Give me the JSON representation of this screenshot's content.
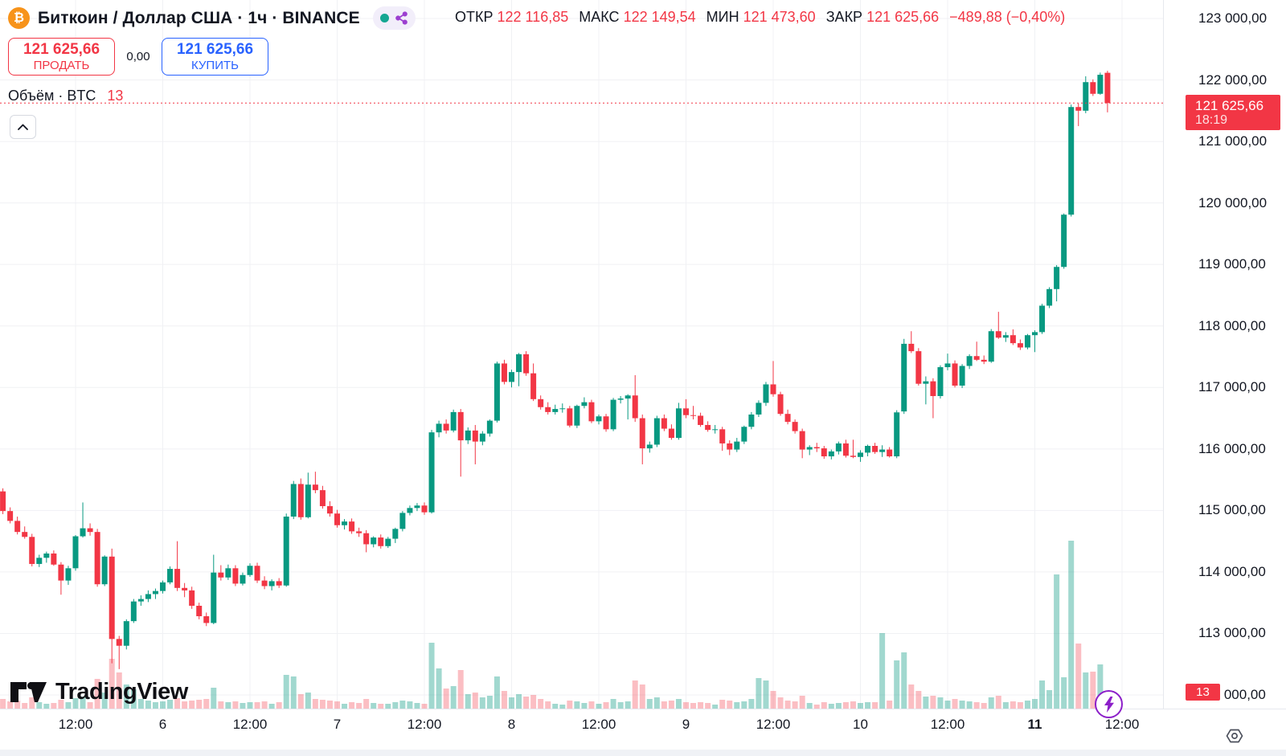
{
  "header": {
    "symbol_title": "Биткоин / Доллар США · 1ч · BINANCE",
    "ohlc": {
      "open_label": "ОТКР",
      "open": "122 116,85",
      "high_label": "МАКС",
      "high": "122 149,54",
      "low_label": "МИН",
      "low": "121 473,60",
      "close_label": "ЗАКР",
      "close": "121 625,66",
      "change": "−489,88 (−0,40%)"
    }
  },
  "trade_buttons": {
    "sell_price": "121 625,66",
    "sell_label": "ПРОДАТЬ",
    "spread": "0,00",
    "buy_price": "121 625,66",
    "buy_label": "КУПИТЬ"
  },
  "indicator": {
    "label": "Объём · BTC",
    "value": "13"
  },
  "price_scale": {
    "labels": [
      "123 000,00",
      "122 000,00",
      "121 000,00",
      "120 000,00",
      "119 000,00",
      "118 000,00",
      "117 000,00",
      "116 000,00",
      "115 000,00",
      "114 000,00",
      "113 000,00",
      "112 000,00"
    ],
    "last_price_badge": {
      "price": "121 625,66",
      "countdown": "18:19"
    },
    "volume_badge": "13"
  },
  "time_scale": {
    "labels": [
      {
        "text": "12:00",
        "bold": false
      },
      {
        "text": "6",
        "bold": false
      },
      {
        "text": "12:00",
        "bold": false
      },
      {
        "text": "7",
        "bold": false
      },
      {
        "text": "12:00",
        "bold": false
      },
      {
        "text": "8",
        "bold": false
      },
      {
        "text": "12:00",
        "bold": false
      },
      {
        "text": "9",
        "bold": false
      },
      {
        "text": "12:00",
        "bold": false
      },
      {
        "text": "10",
        "bold": false
      },
      {
        "text": "12:00",
        "bold": false
      },
      {
        "text": "11",
        "bold": true
      },
      {
        "text": "12:00",
        "bold": false
      }
    ]
  },
  "watermark": "TradingView",
  "colors": {
    "up": "#089981",
    "down": "#f23645",
    "vol_up": "rgba(8,153,129,0.38)",
    "vol_down": "rgba(242,54,69,0.32)",
    "accent_buy": "#2962ff",
    "accent_sell": "#f23645",
    "grid": "#f0f1f4",
    "badge": "#f23645",
    "share_purple": "#9c3fd0",
    "btc_orange": "#f7931a"
  },
  "chart_data": {
    "type": "candlestick+volume",
    "symbol": "Биткоин / Доллар США (BTC/USD)",
    "interval": "1ч",
    "exchange": "BINANCE",
    "last_price": 121625.66,
    "last_bar": {
      "open": 122116.85,
      "high": 122149.54,
      "low": 121473.6,
      "close": 121625.66,
      "change": -489.88,
      "change_pct": -0.4
    },
    "current_bar_volume_btc": 13,
    "y_axis": {
      "min": 112000,
      "max": 123000,
      "step": 1000
    },
    "x_tick_labels": [
      "12:00",
      "6",
      "12:00",
      "7",
      "12:00",
      "8",
      "12:00",
      "9",
      "12:00",
      "10",
      "12:00",
      "11",
      "12:00"
    ],
    "legend": "Объём · BTC",
    "volume_unit": "relative-height-px",
    "ohlcv": [
      [
        115310,
        115360,
        114940,
        114990,
        12
      ],
      [
        114990,
        115050,
        114790,
        114830,
        9
      ],
      [
        114830,
        114900,
        114610,
        114650,
        10
      ],
      [
        114650,
        114740,
        114540,
        114570,
        7
      ],
      [
        114570,
        114620,
        114090,
        114130,
        14
      ],
      [
        114130,
        114280,
        114080,
        114230,
        8
      ],
      [
        114230,
        114330,
        114150,
        114300,
        6
      ],
      [
        114300,
        114350,
        114100,
        114120,
        7
      ],
      [
        114120,
        114160,
        113630,
        113860,
        11
      ],
      [
        113860,
        114100,
        113790,
        114060,
        8
      ],
      [
        114060,
        114600,
        114020,
        114580,
        13
      ],
      [
        114580,
        115130,
        114560,
        114710,
        15
      ],
      [
        114710,
        114790,
        114590,
        114650,
        8
      ],
      [
        114650,
        114700,
        113760,
        113800,
        37
      ],
      [
        113800,
        114270,
        113770,
        114250,
        20
      ],
      [
        114250,
        114380,
        112515,
        112910,
        62
      ],
      [
        112910,
        112960,
        112420,
        112800,
        45
      ],
      [
        112800,
        113230,
        112740,
        113200,
        30
      ],
      [
        113200,
        113560,
        113170,
        113520,
        24
      ],
      [
        113520,
        113620,
        113450,
        113560,
        12
      ],
      [
        113560,
        113700,
        113510,
        113640,
        10
      ],
      [
        113640,
        113730,
        113560,
        113690,
        8
      ],
      [
        113690,
        113860,
        113650,
        113830,
        9
      ],
      [
        113830,
        114090,
        113800,
        114050,
        11
      ],
      [
        114050,
        114500,
        113690,
        113740,
        13
      ],
      [
        113740,
        113820,
        113590,
        113700,
        9
      ],
      [
        113700,
        113760,
        113400,
        113450,
        10
      ],
      [
        113450,
        113500,
        113230,
        113280,
        11
      ],
      [
        113280,
        113340,
        113120,
        113170,
        12
      ],
      [
        113170,
        114280,
        113150,
        113990,
        26
      ],
      [
        113990,
        114110,
        113860,
        113910,
        9
      ],
      [
        113910,
        114120,
        113870,
        114060,
        8
      ],
      [
        114060,
        114110,
        113770,
        113810,
        9
      ],
      [
        113810,
        113990,
        113780,
        113950,
        7
      ],
      [
        113950,
        114140,
        113920,
        114100,
        8
      ],
      [
        114100,
        114150,
        113820,
        113860,
        8
      ],
      [
        113860,
        113930,
        113720,
        113770,
        9
      ],
      [
        113770,
        113880,
        113700,
        113850,
        6
      ],
      [
        113850,
        113900,
        113740,
        113780,
        8
      ],
      [
        113780,
        114950,
        113760,
        114900,
        42
      ],
      [
        114900,
        115480,
        114860,
        115430,
        40
      ],
      [
        115430,
        115520,
        114850,
        114890,
        18
      ],
      [
        114890,
        115615,
        114870,
        115420,
        20
      ],
      [
        115420,
        115630,
        115280,
        115330,
        12
      ],
      [
        115330,
        115400,
        115030,
        115070,
        11
      ],
      [
        115070,
        115150,
        114900,
        114950,
        10
      ],
      [
        114950,
        115010,
        114720,
        114760,
        9
      ],
      [
        114760,
        114860,
        114690,
        114820,
        6
      ],
      [
        114820,
        114870,
        114620,
        114660,
        8
      ],
      [
        114660,
        114720,
        114570,
        114630,
        7
      ],
      [
        114630,
        114680,
        114320,
        114450,
        12
      ],
      [
        114450,
        114580,
        114400,
        114560,
        7
      ],
      [
        114560,
        114610,
        114380,
        114420,
        6
      ],
      [
        114420,
        114570,
        114390,
        114540,
        6
      ],
      [
        114540,
        114720,
        114470,
        114700,
        8
      ],
      [
        114700,
        114990,
        114660,
        114960,
        10
      ],
      [
        114960,
        115080,
        114920,
        115040,
        9
      ],
      [
        115040,
        115120,
        114990,
        115080,
        7
      ],
      [
        115080,
        115130,
        114930,
        114970,
        6
      ],
      [
        114970,
        116310,
        114950,
        116270,
        82
      ],
      [
        116270,
        116460,
        116190,
        116410,
        50
      ],
      [
        116410,
        116480,
        116250,
        116300,
        25
      ],
      [
        116300,
        116640,
        116270,
        116600,
        28
      ],
      [
        116600,
        116650,
        115550,
        116140,
        48
      ],
      [
        116140,
        116350,
        116080,
        116300,
        18
      ],
      [
        116300,
        116390,
        115750,
        116120,
        20
      ],
      [
        116120,
        116290,
        116060,
        116250,
        14
      ],
      [
        116250,
        116480,
        116200,
        116460,
        16
      ],
      [
        116460,
        117420,
        116430,
        117390,
        40
      ],
      [
        117390,
        117450,
        117050,
        117090,
        22
      ],
      [
        117090,
        117290,
        117000,
        117250,
        14
      ],
      [
        117250,
        117560,
        117020,
        117540,
        18
      ],
      [
        117540,
        117590,
        117190,
        117230,
        15
      ],
      [
        117230,
        117390,
        116780,
        116810,
        17
      ],
      [
        116810,
        116870,
        116640,
        116680,
        12
      ],
      [
        116680,
        116760,
        116560,
        116600,
        9
      ],
      [
        116600,
        116720,
        116560,
        116650,
        6
      ],
      [
        116650,
        116740,
        116590,
        116660,
        5
      ],
      [
        116660,
        116700,
        116350,
        116380,
        10
      ],
      [
        116380,
        116720,
        116340,
        116700,
        9
      ],
      [
        116700,
        116840,
        116660,
        116760,
        7
      ],
      [
        116760,
        116800,
        116420,
        116450,
        9
      ],
      [
        116450,
        116560,
        116400,
        116530,
        6
      ],
      [
        116530,
        116570,
        116280,
        116320,
        8
      ],
      [
        116320,
        116830,
        116290,
        116800,
        12
      ],
      [
        116800,
        116860,
        116740,
        116820,
        8
      ],
      [
        116820,
        116890,
        116480,
        116870,
        9
      ],
      [
        116870,
        117200,
        116440,
        116500,
        35
      ],
      [
        116500,
        116560,
        115750,
        116010,
        30
      ],
      [
        116010,
        116120,
        115940,
        116070,
        12
      ],
      [
        116070,
        116540,
        116030,
        116500,
        14
      ],
      [
        116500,
        116560,
        116290,
        116330,
        9
      ],
      [
        116330,
        116400,
        116150,
        116180,
        10
      ],
      [
        116180,
        116750,
        116150,
        116660,
        12
      ],
      [
        116660,
        116810,
        116500,
        116550,
        8
      ],
      [
        116550,
        116700,
        116480,
        116540,
        7
      ],
      [
        116540,
        116590,
        116360,
        116390,
        8
      ],
      [
        116390,
        116450,
        116280,
        116310,
        7
      ],
      [
        116310,
        116390,
        116250,
        116320,
        5
      ],
      [
        116320,
        116360,
        115970,
        116090,
        11
      ],
      [
        116090,
        116140,
        115900,
        115990,
        10
      ],
      [
        115990,
        116180,
        115950,
        116120,
        8
      ],
      [
        116120,
        116380,
        116080,
        116360,
        9
      ],
      [
        116360,
        116600,
        116320,
        116560,
        12
      ],
      [
        116560,
        116790,
        116520,
        116750,
        38
      ],
      [
        116750,
        117090,
        116700,
        117050,
        35
      ],
      [
        117050,
        117430,
        116850,
        116890,
        22
      ],
      [
        116890,
        116930,
        116540,
        116570,
        14
      ],
      [
        116570,
        116640,
        116400,
        116440,
        10
      ],
      [
        116440,
        116480,
        116250,
        116290,
        9
      ],
      [
        116290,
        116330,
        115850,
        115990,
        16
      ],
      [
        115990,
        116060,
        115900,
        116030,
        7
      ],
      [
        116030,
        116100,
        115950,
        116010,
        5
      ],
      [
        116010,
        116050,
        115840,
        115880,
        8
      ],
      [
        115880,
        115990,
        115830,
        115960,
        6
      ],
      [
        115960,
        116120,
        115910,
        116090,
        7
      ],
      [
        116090,
        116150,
        115860,
        115890,
        8
      ],
      [
        115890,
        116150,
        115850,
        115870,
        9
      ],
      [
        115870,
        115980,
        115790,
        115940,
        7
      ],
      [
        115940,
        116070,
        115880,
        116050,
        8
      ],
      [
        116050,
        116100,
        115920,
        115950,
        8
      ],
      [
        115950,
        116060,
        115870,
        115990,
        94
      ],
      [
        115990,
        116030,
        115860,
        115880,
        10
      ],
      [
        115880,
        116630,
        115850,
        116595,
        60
      ],
      [
        116610,
        117790,
        116570,
        117710,
        70
      ],
      [
        117710,
        117915,
        117560,
        117590,
        30
      ],
      [
        117590,
        117640,
        117030,
        117060,
        22
      ],
      [
        117060,
        117180,
        116725,
        117100,
        15
      ],
      [
        117100,
        117150,
        116500,
        116860,
        16
      ],
      [
        116860,
        117360,
        116820,
        117330,
        14
      ],
      [
        117330,
        117550,
        117280,
        117390,
        10
      ],
      [
        117390,
        117440,
        117000,
        117030,
        12
      ],
      [
        117030,
        117380,
        116990,
        117350,
        10
      ],
      [
        117350,
        117540,
        117300,
        117510,
        9
      ],
      [
        117510,
        117745,
        117430,
        117450,
        8
      ],
      [
        117450,
        117520,
        117380,
        117420,
        7
      ],
      [
        117420,
        117950,
        117400,
        117915,
        14
      ],
      [
        117915,
        118230,
        117790,
        117810,
        16
      ],
      [
        117810,
        117900,
        117740,
        117850,
        8
      ],
      [
        117850,
        117945,
        117690,
        117720,
        9
      ],
      [
        117720,
        117780,
        117610,
        117650,
        8
      ],
      [
        117650,
        117870,
        117620,
        117850,
        10
      ],
      [
        117850,
        117930,
        117575,
        117900,
        12
      ],
      [
        117900,
        118360,
        117870,
        118330,
        35
      ],
      [
        118330,
        118630,
        118290,
        118600,
        23
      ],
      [
        118600,
        118990,
        118400,
        118960,
        167
      ],
      [
        118960,
        119830,
        118930,
        119810,
        39
      ],
      [
        119810,
        121600,
        119780,
        121560,
        209
      ],
      [
        121560,
        121620,
        121250,
        121500,
        81
      ],
      [
        121500,
        122060,
        121460,
        121965,
        45
      ],
      [
        121965,
        122010,
        121740,
        121775,
        46
      ],
      [
        121775,
        122120,
        121760,
        122085,
        55
      ],
      [
        122116.85,
        122149.54,
        121473.6,
        121625.66,
        14
      ]
    ]
  }
}
